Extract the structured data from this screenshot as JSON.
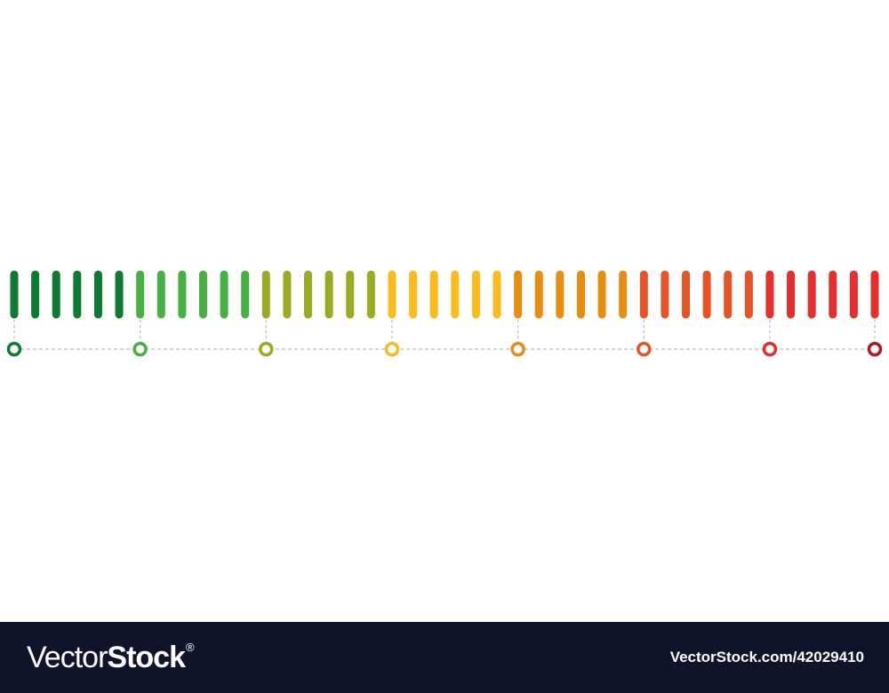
{
  "scale": {
    "segments": [
      {
        "color": "#0f7a33",
        "bars": 6
      },
      {
        "color": "#45b043",
        "bars": 6
      },
      {
        "color": "#9aab23",
        "bars": 6
      },
      {
        "color": "#fcbb1d",
        "bars": 6
      },
      {
        "color": "#e88d0f",
        "bars": 6
      },
      {
        "color": "#e55422",
        "bars": 6
      },
      {
        "color": "#e52f2f",
        "bars": 6
      }
    ],
    "markers": [
      {
        "color": "#0f7a33"
      },
      {
        "color": "#45b043"
      },
      {
        "color": "#9aab23"
      },
      {
        "color": "#fcbb1d"
      },
      {
        "color": "#e88d0f"
      },
      {
        "color": "#e55422"
      },
      {
        "color": "#e52f2f"
      },
      {
        "color": "#b5161f"
      }
    ],
    "connector_color": "#c8c8c8"
  },
  "footer": {
    "logo_light": "Vector",
    "logo_bold": "Stock",
    "logo_mark": "®",
    "url": "VectorStock.com/42029410"
  }
}
